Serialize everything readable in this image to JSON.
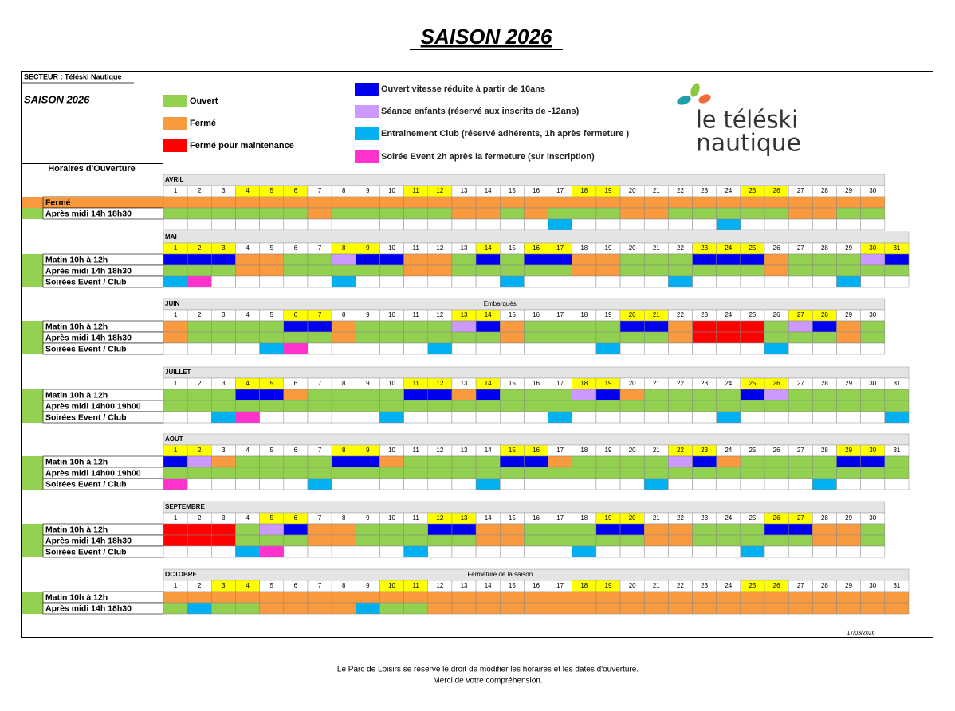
{
  "title": "SAISON 2026",
  "sector": "SECTEUR : Téléski Nautique",
  "season": "SAISON 2026",
  "legend": [
    {
      "label": "Ouvert",
      "color": "#92d050"
    },
    {
      "label": "Fermé",
      "color": "#f99a3e"
    },
    {
      "label": "Fermé pour maintenance",
      "color": "#ff0000"
    },
    {
      "label": "Ouvert vitesse réduite à partir de 10ans",
      "color": "#0000ee"
    },
    {
      "label": "Séance enfants (réservé aux inscrits de -12ans)",
      "color": "#cc99ff"
    },
    {
      "label": "Entrainement Club (réservé adhérents, 1h après fermeture )",
      "color": "#00b0f0"
    },
    {
      "label": "Soirée Event 2h après la fermeture (sur inscription)",
      "color": "#ff33cc"
    }
  ],
  "hours_heading": "Horaires d'Ouverture",
  "logo": [
    "le téléski",
    "nautique"
  ],
  "months": [
    {
      "name": "AVRIL",
      "days": [
        1,
        2,
        3,
        4,
        5,
        6,
        7,
        8,
        9,
        10,
        11,
        12,
        13,
        14,
        15,
        16,
        17,
        18,
        19,
        20,
        21,
        22,
        23,
        24,
        25,
        26,
        27,
        28,
        29,
        30
      ],
      "highlight": [
        4,
        5,
        6,
        11,
        12,
        18,
        19,
        25,
        26
      ],
      "rows": [
        {
          "label": "Fermé",
          "swatch": 1,
          "cells": [
            1,
            1,
            1,
            1,
            1,
            1,
            1,
            1,
            1,
            1,
            1,
            1,
            1,
            1,
            1,
            1,
            1,
            1,
            1,
            1,
            1,
            1,
            1,
            1,
            1,
            1,
            1,
            1,
            1,
            1
          ]
        },
        {
          "label": "Après midi 14h 18h30",
          "swatch": 0,
          "cells": [
            0,
            0,
            0,
            0,
            0,
            0,
            1,
            0,
            0,
            0,
            0,
            0,
            1,
            1,
            0,
            1,
            0,
            0,
            0,
            1,
            1,
            0,
            0,
            0,
            0,
            0,
            1,
            1,
            0,
            0
          ]
        },
        {
          "cells": [
            null,
            null,
            null,
            null,
            null,
            null,
            null,
            null,
            null,
            null,
            null,
            null,
            null,
            null,
            null,
            null,
            5,
            null,
            null,
            null,
            null,
            null,
            null,
            5,
            null,
            null,
            null,
            null,
            null,
            null
          ]
        }
      ]
    },
    {
      "name": "MAI",
      "days": [
        1,
        2,
        3,
        4,
        5,
        6,
        7,
        8,
        9,
        10,
        11,
        12,
        13,
        14,
        15,
        16,
        17,
        18,
        19,
        20,
        21,
        22,
        23,
        24,
        25,
        26,
        27,
        28,
        29,
        30,
        31
      ],
      "highlight": [
        1,
        2,
        3,
        8,
        9,
        14,
        16,
        17,
        23,
        24,
        25,
        30,
        31
      ],
      "rows": [
        {
          "label": "Matin 10h à 12h",
          "swatch": 0,
          "cells": [
            3,
            3,
            3,
            1,
            1,
            0,
            0,
            4,
            3,
            3,
            1,
            1,
            0,
            3,
            0,
            3,
            3,
            1,
            1,
            0,
            0,
            0,
            3,
            3,
            3,
            1,
            0,
            0,
            0,
            4,
            3
          ]
        },
        {
          "label": "Après midi 14h 18h30",
          "swatch": 0,
          "cells": [
            0,
            0,
            0,
            1,
            1,
            0,
            0,
            0,
            0,
            0,
            1,
            1,
            0,
            0,
            0,
            0,
            0,
            1,
            1,
            0,
            0,
            0,
            0,
            0,
            0,
            1,
            0,
            0,
            0,
            0,
            0
          ]
        },
        {
          "label": "Soirées Event / Club",
          "swatch": 0,
          "cells": [
            5,
            6,
            null,
            null,
            null,
            null,
            null,
            5,
            null,
            null,
            null,
            null,
            null,
            null,
            5,
            null,
            null,
            null,
            null,
            null,
            null,
            5,
            null,
            null,
            null,
            null,
            null,
            null,
            5,
            null,
            null
          ]
        }
      ]
    },
    {
      "name": "JUIN",
      "note": "Embarqués",
      "days": [
        1,
        2,
        3,
        4,
        5,
        6,
        7,
        8,
        9,
        10,
        11,
        12,
        13,
        14,
        15,
        16,
        17,
        18,
        19,
        20,
        21,
        22,
        23,
        24,
        25,
        26,
        27,
        28,
        29,
        30
      ],
      "highlight": [
        6,
        7,
        13,
        14,
        20,
        21,
        27,
        28
      ],
      "rows": [
        {
          "label": "Matin 10h à 12h",
          "swatch": 0,
          "cells": [
            1,
            0,
            0,
            0,
            0,
            3,
            3,
            1,
            0,
            0,
            0,
            0,
            4,
            3,
            1,
            0,
            0,
            0,
            0,
            3,
            3,
            1,
            2,
            2,
            2,
            0,
            4,
            3,
            1,
            0
          ]
        },
        {
          "label": "Après midi 14h 18h30",
          "swatch": 0,
          "cells": [
            1,
            0,
            0,
            0,
            0,
            0,
            0,
            1,
            0,
            0,
            0,
            0,
            0,
            0,
            1,
            0,
            0,
            0,
            0,
            0,
            0,
            1,
            2,
            2,
            2,
            0,
            0,
            0,
            1,
            0
          ]
        },
        {
          "label": "Soirées Event / Club",
          "swatch": 0,
          "cells": [
            null,
            null,
            null,
            null,
            5,
            6,
            null,
            null,
            null,
            null,
            null,
            5,
            null,
            null,
            null,
            null,
            null,
            null,
            5,
            null,
            null,
            null,
            null,
            null,
            null,
            5,
            null,
            null,
            null,
            null
          ]
        }
      ]
    },
    {
      "name": "JUILLET",
      "days": [
        1,
        2,
        3,
        4,
        5,
        6,
        7,
        8,
        9,
        10,
        11,
        12,
        13,
        14,
        15,
        16,
        17,
        18,
        19,
        20,
        21,
        22,
        23,
        24,
        25,
        26,
        27,
        28,
        29,
        30,
        31
      ],
      "highlight": [
        4,
        5,
        11,
        12,
        14,
        18,
        19,
        25,
        26
      ],
      "rows": [
        {
          "label": "Matin 10h à 12h",
          "swatch": 0,
          "cells": [
            0,
            0,
            0,
            3,
            3,
            1,
            0,
            0,
            0,
            0,
            3,
            3,
            1,
            3,
            0,
            0,
            0,
            4,
            3,
            1,
            0,
            0,
            0,
            0,
            3,
            4,
            0,
            0,
            0,
            0,
            0
          ]
        },
        {
          "label": "Après midi 14h00 19h00",
          "swatch": 0,
          "cells": [
            0,
            0,
            0,
            0,
            0,
            0,
            0,
            0,
            0,
            0,
            0,
            0,
            0,
            0,
            0,
            0,
            0,
            0,
            0,
            0,
            0,
            0,
            0,
            0,
            0,
            0,
            0,
            0,
            0,
            0,
            0
          ]
        },
        {
          "label": "Soirées Event / Club",
          "swatch": 0,
          "cells": [
            null,
            null,
            5,
            6,
            null,
            null,
            null,
            null,
            null,
            5,
            null,
            null,
            null,
            null,
            null,
            null,
            5,
            null,
            null,
            null,
            null,
            null,
            null,
            5,
            null,
            null,
            null,
            null,
            null,
            null,
            5
          ]
        }
      ]
    },
    {
      "name": "AOUT",
      "days": [
        1,
        2,
        3,
        4,
        5,
        6,
        7,
        8,
        9,
        10,
        11,
        12,
        13,
        14,
        15,
        16,
        17,
        18,
        19,
        20,
        21,
        22,
        23,
        24,
        25,
        26,
        27,
        28,
        29,
        30,
        31
      ],
      "highlight": [
        1,
        2,
        8,
        9,
        15,
        16,
        22,
        23,
        29,
        30
      ],
      "rows": [
        {
          "label": "Matin 10h à 12h",
          "swatch": 0,
          "cells": [
            3,
            4,
            1,
            0,
            0,
            0,
            0,
            3,
            3,
            1,
            0,
            0,
            0,
            0,
            3,
            3,
            1,
            0,
            0,
            0,
            0,
            4,
            3,
            1,
            0,
            0,
            0,
            0,
            3,
            3,
            0
          ]
        },
        {
          "label": "Après midi 14h00 19h00",
          "swatch": 0,
          "cells": [
            0,
            0,
            0,
            0,
            0,
            0,
            0,
            0,
            0,
            0,
            0,
            0,
            0,
            0,
            0,
            0,
            0,
            0,
            0,
            0,
            0,
            0,
            0,
            0,
            0,
            0,
            0,
            0,
            0,
            0,
            0
          ]
        },
        {
          "label": "Soirées Event / Club",
          "swatch": 0,
          "cells": [
            6,
            null,
            null,
            null,
            null,
            null,
            5,
            null,
            null,
            null,
            null,
            null,
            null,
            5,
            null,
            null,
            null,
            null,
            null,
            null,
            5,
            null,
            null,
            null,
            null,
            null,
            null,
            5,
            null,
            null,
            null
          ]
        }
      ]
    },
    {
      "name": "SEPTEMBRE",
      "days": [
        1,
        2,
        3,
        4,
        5,
        6,
        7,
        8,
        9,
        10,
        11,
        12,
        13,
        14,
        15,
        16,
        17,
        18,
        19,
        20,
        21,
        22,
        23,
        24,
        25,
        26,
        27,
        28,
        29,
        30
      ],
      "highlight": [
        5,
        6,
        12,
        13,
        19,
        20,
        26,
        27
      ],
      "rows": [
        {
          "label": "Matin 10h à 12h",
          "swatch": 0,
          "cells": [
            2,
            2,
            2,
            0,
            4,
            3,
            1,
            1,
            0,
            0,
            0,
            3,
            3,
            1,
            1,
            0,
            0,
            0,
            3,
            3,
            1,
            1,
            0,
            0,
            0,
            3,
            3,
            1,
            1,
            0
          ]
        },
        {
          "label": "Après midi 14h 18h30",
          "swatch": 0,
          "cells": [
            2,
            2,
            2,
            0,
            0,
            0,
            1,
            1,
            0,
            0,
            0,
            0,
            0,
            1,
            1,
            0,
            0,
            0,
            0,
            0,
            1,
            1,
            0,
            0,
            0,
            0,
            0,
            1,
            1,
            0
          ]
        },
        {
          "label": "Soirées Event / Club",
          "swatch": 0,
          "cells": [
            null,
            null,
            null,
            5,
            6,
            null,
            null,
            null,
            null,
            null,
            5,
            null,
            null,
            null,
            null,
            null,
            null,
            5,
            null,
            null,
            null,
            null,
            null,
            null,
            5,
            null,
            null,
            null,
            null,
            null
          ]
        }
      ]
    },
    {
      "name": "OCTOBRE",
      "note": "Fermeture de la saison",
      "days": [
        1,
        2,
        3,
        4,
        5,
        6,
        7,
        8,
        9,
        10,
        11,
        12,
        13,
        14,
        15,
        16,
        17,
        18,
        19,
        20,
        21,
        22,
        23,
        24,
        25,
        26,
        27,
        28,
        29,
        30,
        31
      ],
      "highlight": [
        3,
        4,
        10,
        11,
        18,
        19,
        25,
        26
      ],
      "rows": [
        {
          "label": "Matin 10h à 12h",
          "swatch": 0,
          "cells": [
            1,
            1,
            1,
            1,
            1,
            1,
            1,
            1,
            1,
            1,
            1,
            1,
            1,
            1,
            1,
            1,
            1,
            1,
            1,
            1,
            1,
            1,
            1,
            1,
            1,
            1,
            1,
            1,
            1,
            1,
            1
          ]
        },
        {
          "label": "Après midi 14h 18h30",
          "swatch": 0,
          "cells": [
            0,
            5,
            0,
            0,
            1,
            1,
            1,
            1,
            5,
            0,
            0,
            1,
            1,
            1,
            1,
            1,
            1,
            1,
            1,
            1,
            1,
            1,
            1,
            1,
            1,
            1,
            1,
            1,
            1,
            1,
            1
          ]
        }
      ]
    }
  ],
  "date": "17/03/2026",
  "footer": [
    "Le Parc de Loisirs se réserve le droit de modifier les horaires et les dates d'ouverture.",
    "Merci de votre compréhension."
  ]
}
